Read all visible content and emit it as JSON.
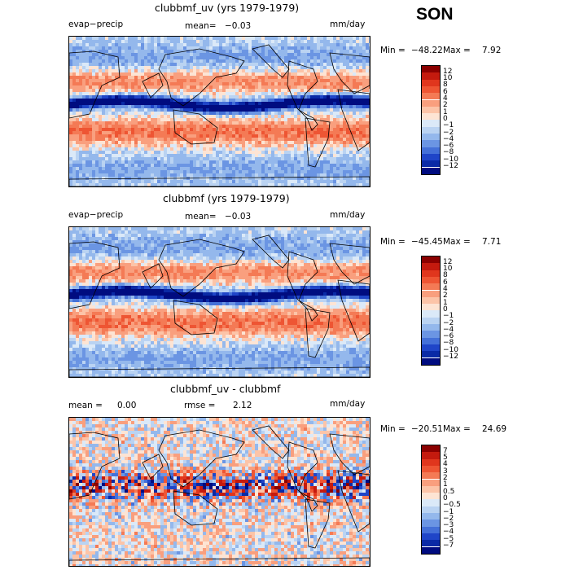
{
  "season": "SON",
  "chart_data": [
    {
      "type": "heatmap",
      "title": "clubbmf_uv (yrs 1979-1979)",
      "variable": "evap−precip",
      "mean_label": "mean=",
      "mean_value": "−0.03",
      "units": "mm/day",
      "min_label": "Min =",
      "min_value": "−48.22",
      "max_label": "Max =",
      "max_value": "7.92",
      "legend_levels": [
        "12",
        "10",
        "8",
        "6",
        "4",
        "2",
        "1",
        "0",
        "−1",
        "−2",
        "−4",
        "−6",
        "−8",
        "−10",
        "−12"
      ],
      "legend_colors": [
        "#8b0000",
        "#c41a0e",
        "#e0361d",
        "#ee5533",
        "#f47a55",
        "#f99f7e",
        "#fcc4a8",
        "#fde4d4",
        "#dbe9f8",
        "#bad3f2",
        "#94b8ec",
        "#6b95e3",
        "#4470d8",
        "#1f45c8",
        "#0a2aa6",
        "#000c80"
      ],
      "map_layout": "pacific-centered world map",
      "pattern": "itcz-negative"
    },
    {
      "type": "heatmap",
      "title": "clubbmf (yrs 1979-1979)",
      "variable": "evap−precip",
      "mean_label": "mean=",
      "mean_value": "−0.03",
      "units": "mm/day",
      "min_label": "Min =",
      "min_value": "−45.45",
      "max_label": "Max =",
      "max_value": "7.71",
      "legend_levels": [
        "12",
        "10",
        "8",
        "6",
        "4",
        "2",
        "1",
        "0",
        "−1",
        "−2",
        "−4",
        "−6",
        "−8",
        "−10",
        "−12"
      ],
      "legend_colors": [
        "#8b0000",
        "#c41a0e",
        "#e0361d",
        "#ee5533",
        "#f47a55",
        "#f99f7e",
        "#fcc4a8",
        "#fde4d4",
        "#dbe9f8",
        "#bad3f2",
        "#94b8ec",
        "#6b95e3",
        "#4470d8",
        "#1f45c8",
        "#0a2aa6",
        "#000c80"
      ],
      "map_layout": "pacific-centered world map",
      "pattern": "itcz-negative"
    },
    {
      "type": "heatmap",
      "title": "clubbmf_uv - clubbmf",
      "mean_label": "mean =",
      "mean_value": "0.00",
      "rmse_label": "rmse =",
      "rmse_value": "2.12",
      "units": "mm/day",
      "min_label": "Min =",
      "min_value": "−20.51",
      "max_label": "Max =",
      "max_value": "24.69",
      "legend_levels": [
        "7",
        "5",
        "4",
        "3",
        "2",
        "1",
        "0.5",
        "0",
        "−0.5",
        "−1",
        "−2",
        "−3",
        "−4",
        "−5",
        "−7"
      ],
      "legend_colors": [
        "#8b0000",
        "#c41a0e",
        "#e0361d",
        "#ee5533",
        "#f47a55",
        "#f99f7e",
        "#fcc4a8",
        "#fde4d4",
        "#dbe9f8",
        "#bad3f2",
        "#94b8ec",
        "#6b95e3",
        "#4470d8",
        "#1f45c8",
        "#0a2aa6",
        "#000c80"
      ],
      "map_layout": "pacific-centered world map",
      "pattern": "difference-noise"
    }
  ]
}
